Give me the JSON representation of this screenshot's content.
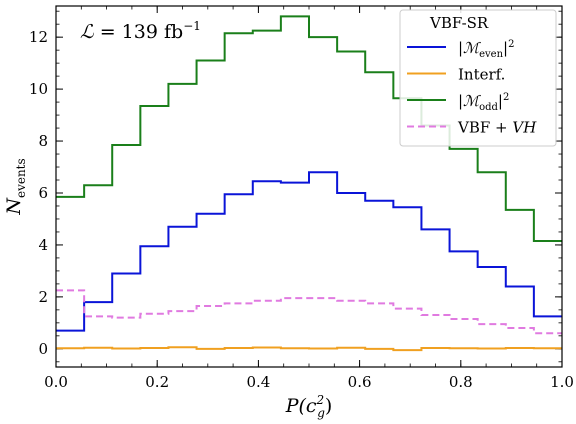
{
  "chart_data": {
    "type": "line",
    "subtype": "step-histogram",
    "annotation": {
      "symbol": "ℒ",
      "text": " = 139 fb",
      "superscript": "−1"
    },
    "xlabel": {
      "base": "P(c",
      "sup": "2",
      "sub": "g",
      "tail": ")"
    },
    "ylabel": {
      "base": "N",
      "sub": "events"
    },
    "xlim": [
      0.0,
      1.0
    ],
    "ylim": [
      -0.7,
      13.2
    ],
    "xticks": [
      "0.0",
      "0.2",
      "0.4",
      "0.6",
      "0.8",
      "1.0"
    ],
    "yticks": [
      "0",
      "2",
      "4",
      "6",
      "8",
      "10",
      "12"
    ],
    "bin_edges": [
      0.0,
      0.0556,
      0.1111,
      0.1667,
      0.2222,
      0.2778,
      0.3333,
      0.3889,
      0.4444,
      0.5,
      0.5556,
      0.6111,
      0.6667,
      0.7222,
      0.7778,
      0.8333,
      0.8889,
      0.9444,
      1.0
    ],
    "legend": {
      "title": "VBF-SR",
      "position": "top-right"
    },
    "series": [
      {
        "name": "|ℳeven|²",
        "legend_label": {
          "base": "|ℳ",
          "sub": "even",
          "tail": "|",
          "sup": "2"
        },
        "color": "#0a14d8",
        "dashed": false,
        "values": [
          0.7,
          1.8,
          2.9,
          3.95,
          4.7,
          5.2,
          5.95,
          6.45,
          6.4,
          6.8,
          6.0,
          5.7,
          5.45,
          4.6,
          3.75,
          3.15,
          2.4,
          1.25
        ]
      },
      {
        "name": "Interf.",
        "legend_label": {
          "base": "Interf."
        },
        "color": "#f0a020",
        "dashed": false,
        "values": [
          0.02,
          0.04,
          0.01,
          0.03,
          0.06,
          0.0,
          0.03,
          0.05,
          0.02,
          0.01,
          0.04,
          0.0,
          -0.05,
          0.03,
          0.02,
          0.01,
          0.03,
          0.02
        ]
      },
      {
        "name": "|ℳodd|²",
        "legend_label": {
          "base": "|ℳ",
          "sub": "odd",
          "tail": "|",
          "sup": "2"
        },
        "color": "#1a7f1a",
        "dashed": false,
        "values": [
          5.85,
          6.3,
          7.85,
          9.35,
          10.2,
          11.1,
          12.15,
          12.25,
          12.8,
          12.0,
          11.45,
          10.65,
          9.65,
          8.6,
          7.7,
          6.8,
          5.35,
          4.15
        ]
      },
      {
        "name": "VBF + VH",
        "legend_label": {
          "base": "VBF + ",
          "ital": "VH"
        },
        "color": "#e07ae0",
        "dashed": true,
        "values": [
          2.25,
          1.25,
          1.2,
          1.35,
          1.45,
          1.65,
          1.75,
          1.85,
          1.95,
          1.95,
          1.85,
          1.75,
          1.55,
          1.3,
          1.15,
          0.95,
          0.8,
          0.6
        ]
      }
    ]
  }
}
